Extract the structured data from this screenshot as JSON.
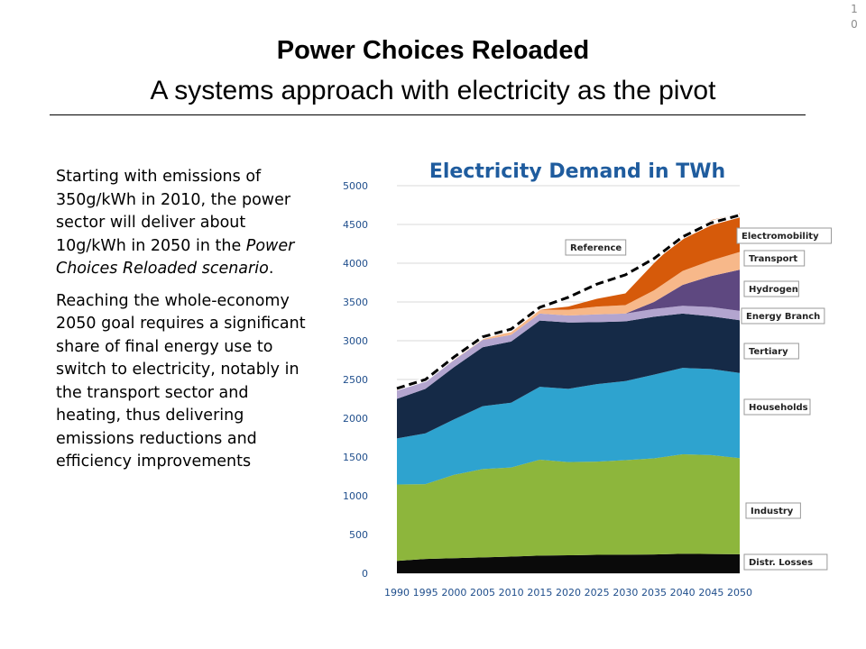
{
  "slide_number": "10",
  "title": "Power Choices Reloaded",
  "subtitle": "A systems approach with electricity as the pivot",
  "body": {
    "para1": "Starting with emissions of 350g/kWh in 2010, the power sector will deliver about 10g/kWh in 2050 in the ",
    "para1_italic": "Power Choices Reloaded scenario",
    "para1_end": ".",
    "para2": "Reaching the whole-economy 2050 goal requires a significant share of final energy use to switch to electricity, notably in the transport sector and heating, thus delivering emissions reductions and efficiency improvements"
  },
  "colors": {
    "Distr. Losses": "#0a0a0a",
    "Industry": "#8db63c",
    "Households": "#2ea3cf",
    "Tertiary": "#152a47",
    "Energy Branch": "#b3a5cf",
    "Hydrogen": "#5e4880",
    "Transport": "#f7b88a",
    "Electromobility": "#d65a0a",
    "Reference": "#000000"
  },
  "chart_data": {
    "type": "area",
    "title": "Electricity Demand in TWh",
    "x": [
      1990,
      1995,
      2000,
      2005,
      2010,
      2015,
      2020,
      2025,
      2030,
      2035,
      2040,
      2045,
      2050
    ],
    "ylim": [
      0,
      5000
    ],
    "yticks": [
      0,
      500,
      1000,
      1500,
      2000,
      2500,
      3000,
      3500,
      4000,
      4500,
      5000
    ],
    "stacked": true,
    "grid": true,
    "series": [
      {
        "name": "Distr. Losses",
        "values": [
          160,
          185,
          195,
          205,
          215,
          228,
          232,
          238,
          240,
          243,
          252,
          248,
          246
        ]
      },
      {
        "name": "Industry",
        "values": [
          985,
          965,
          1075,
          1140,
          1150,
          1237,
          1203,
          1202,
          1220,
          1240,
          1283,
          1277,
          1239
        ]
      },
      {
        "name": "Households",
        "values": [
          595,
          655,
          715,
          810,
          835,
          940,
          945,
          1000,
          1020,
          1080,
          1115,
          1110,
          1100
        ]
      },
      {
        "name": "Tertiary",
        "values": [
          510,
          575,
          675,
          760,
          790,
          855,
          855,
          800,
          770,
          747,
          700,
          680,
          680
        ]
      },
      {
        "name": "Energy Branch",
        "values": [
          110,
          95,
          90,
          95,
          85,
          90,
          90,
          100,
          100,
          100,
          100,
          120,
          120
        ]
      },
      {
        "name": "Hydrogen",
        "values": [
          0,
          0,
          0,
          0,
          0,
          0,
          0,
          0,
          0,
          90,
          270,
          400,
          530
        ]
      },
      {
        "name": "Transport",
        "values": [
          20,
          25,
          25,
          30,
          35,
          50,
          75,
          100,
          110,
          150,
          180,
          200,
          230
        ]
      },
      {
        "name": "Electromobility",
        "values": [
          0,
          0,
          0,
          0,
          0,
          0,
          40,
          100,
          150,
          350,
          450,
          520,
          500
        ]
      }
    ],
    "reference": {
      "name": "Reference",
      "values": [
        2385,
        2500,
        2790,
        3050,
        3150,
        3430,
        3560,
        3730,
        3850,
        4060,
        4340,
        4520,
        4620
      ]
    }
  }
}
